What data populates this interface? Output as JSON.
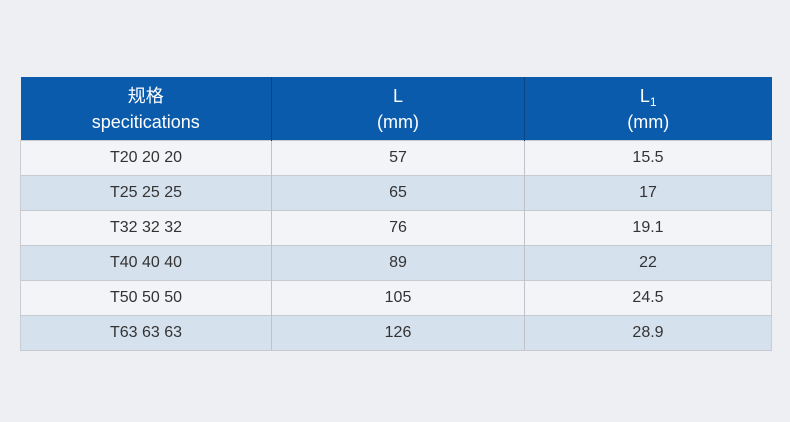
{
  "page": {
    "background_color": "#eff1f5"
  },
  "table": {
    "header": {
      "bg_color": "#0b5bad",
      "text_color": "#ffffff",
      "col1": {
        "line1": "规格",
        "line2": "specitications"
      },
      "col2": {
        "symbol": "L",
        "subscript": "",
        "unit": "(mm)"
      },
      "col3": {
        "symbol": "L",
        "subscript": "1",
        "unit": "(mm)"
      }
    },
    "row_colors": {
      "odd": "#f3f4f7",
      "even": "#d6e1ee"
    },
    "border_color": "#c6cad0",
    "text_color": "#333333"
  },
  "chart_data": {
    "type": "table",
    "title": "",
    "columns": [
      "规格 specitications",
      "L (mm)",
      "L1 (mm)"
    ],
    "rows": [
      [
        "T20 20 20",
        "57",
        "15.5"
      ],
      [
        "T25 25 25",
        "65",
        "17"
      ],
      [
        "T32 32 32",
        "76",
        "19.1"
      ],
      [
        "T40 40 40",
        "89",
        "22"
      ],
      [
        "T50 50 50",
        "105",
        "24.5"
      ],
      [
        "T63 63 63",
        "126",
        "28.9"
      ]
    ]
  }
}
